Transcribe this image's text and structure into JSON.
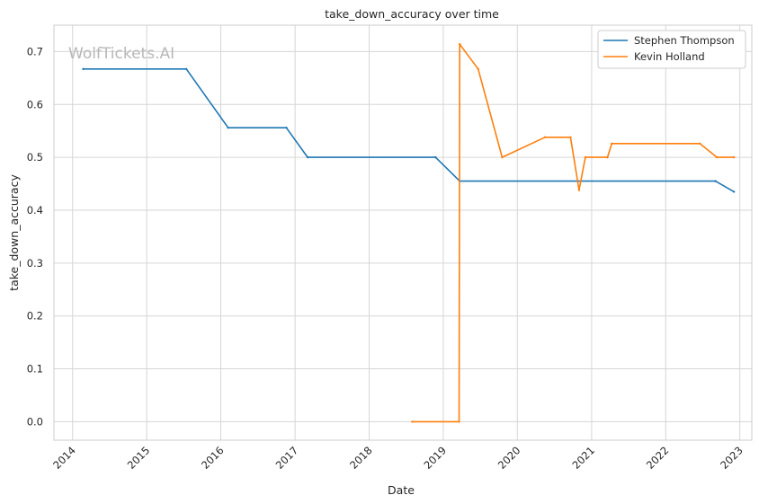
{
  "chart_data": {
    "type": "line",
    "title": "take_down_accuracy over time",
    "xlabel": "Date",
    "ylabel": "take_down_accuracy",
    "watermark": "WolfTickets.AI",
    "xlim": [
      "2013-10-01",
      "2023-03-01"
    ],
    "ylim": [
      -0.035,
      0.75
    ],
    "x_ticks": [
      "2014",
      "2015",
      "2016",
      "2017",
      "2018",
      "2019",
      "2020",
      "2021",
      "2022",
      "2023"
    ],
    "y_ticks": [
      "0.0",
      "0.1",
      "0.2",
      "0.3",
      "0.4",
      "0.5",
      "0.6",
      "0.7"
    ],
    "grid": true,
    "legend_position": "top-right",
    "series": [
      {
        "name": "Stephen Thompson",
        "color": "#1f77b4",
        "points": [
          [
            "2014-02-22",
            0.667
          ],
          [
            "2015-07-15",
            0.667
          ],
          [
            "2016-02-06",
            0.556
          ],
          [
            "2016-11-19",
            0.556
          ],
          [
            "2017-03-04",
            0.5
          ],
          [
            "2018-11-24",
            0.5
          ],
          [
            "2019-03-23",
            0.455
          ],
          [
            "2022-09-03",
            0.455
          ],
          [
            "2022-12-03",
            0.435
          ]
        ]
      },
      {
        "name": "Kevin Holland",
        "color": "#ff7f0e",
        "points": [
          [
            "2018-08-01",
            0.0
          ],
          [
            "2019-03-20",
            0.0
          ],
          [
            "2019-03-23",
            0.714
          ],
          [
            "2019-06-22",
            0.667
          ],
          [
            "2019-10-18",
            0.5
          ],
          [
            "2020-05-16",
            0.538
          ],
          [
            "2020-09-19",
            0.538
          ],
          [
            "2020-10-31",
            0.438
          ],
          [
            "2020-12-01",
            0.5
          ],
          [
            "2021-03-20",
            0.5
          ],
          [
            "2021-04-10",
            0.526
          ],
          [
            "2022-06-18",
            0.526
          ],
          [
            "2022-09-10",
            0.5
          ],
          [
            "2022-12-03",
            0.5
          ]
        ]
      }
    ]
  }
}
